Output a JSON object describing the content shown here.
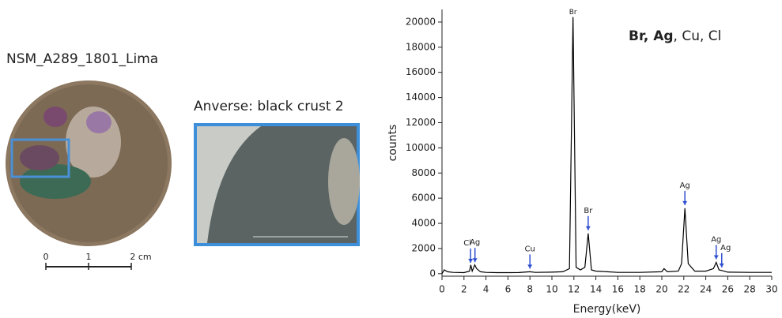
{
  "figure": {
    "sample_name": "NSM_A289_1801_Lima",
    "detail_caption": "Anverse: black crust 2",
    "scale_bar": {
      "ticks": [
        {
          "value": 0,
          "label": "0"
        },
        {
          "value": 1,
          "label": "1"
        },
        {
          "value": 2,
          "label": "2 cm"
        }
      ]
    }
  },
  "chart_data": {
    "type": "line",
    "color": "#000000",
    "xlabel": "Energy(keV)",
    "ylabel": "counts",
    "element_summary": [
      {
        "text": "Br, Ag",
        "bold": true
      },
      {
        "text": ", Cu, Cl",
        "bold": false
      }
    ],
    "x": [
      0,
      0.2,
      0.5,
      1,
      2,
      2.5,
      2.62,
      2.75,
      2.98,
      3.15,
      3.5,
      4,
      5,
      6,
      7,
      8,
      8.5,
      10,
      11,
      11.6,
      11.92,
      12.2,
      12.6,
      13.0,
      13.3,
      13.6,
      14,
      15,
      16,
      18,
      20,
      20.2,
      20.5,
      21.5,
      21.8,
      22.1,
      22.4,
      23,
      24,
      24.7,
      24.95,
      25.2,
      25.45,
      26,
      28,
      30
    ],
    "values": [
      0,
      300,
      150,
      100,
      80,
      200,
      700,
      200,
      700,
      400,
      150,
      100,
      80,
      80,
      90,
      150,
      100,
      120,
      150,
      400,
      20400,
      500,
      300,
      500,
      3200,
      300,
      200,
      150,
      100,
      100,
      150,
      400,
      150,
      200,
      800,
      5200,
      800,
      200,
      200,
      400,
      900,
      300,
      250,
      120,
      100,
      100
    ],
    "peak_labels": [
      {
        "label": "Cl",
        "x": 2.6
      },
      {
        "label": "Ag",
        "x": 3.0
      },
      {
        "label": "Cu",
        "x": 8.0
      },
      {
        "label": "Br",
        "x": 11.92
      },
      {
        "label": "Br",
        "x": 13.3
      },
      {
        "label": "Ag",
        "x": 22.1
      },
      {
        "label": "Ag",
        "x": 24.95
      },
      {
        "label": "Ag",
        "x": 25.45
      }
    ],
    "xlim": [
      0,
      30
    ],
    "xticks": [
      0,
      2,
      4,
      6,
      8,
      10,
      12,
      14,
      16,
      18,
      20,
      22,
      24,
      26,
      28,
      30
    ],
    "ylim": [
      -200,
      21000
    ],
    "yticks": [
      0,
      2000,
      4000,
      6000,
      8000,
      10000,
      12000,
      14000,
      16000,
      18000,
      20000
    ],
    "arrow_color": "#2f4fd0"
  }
}
